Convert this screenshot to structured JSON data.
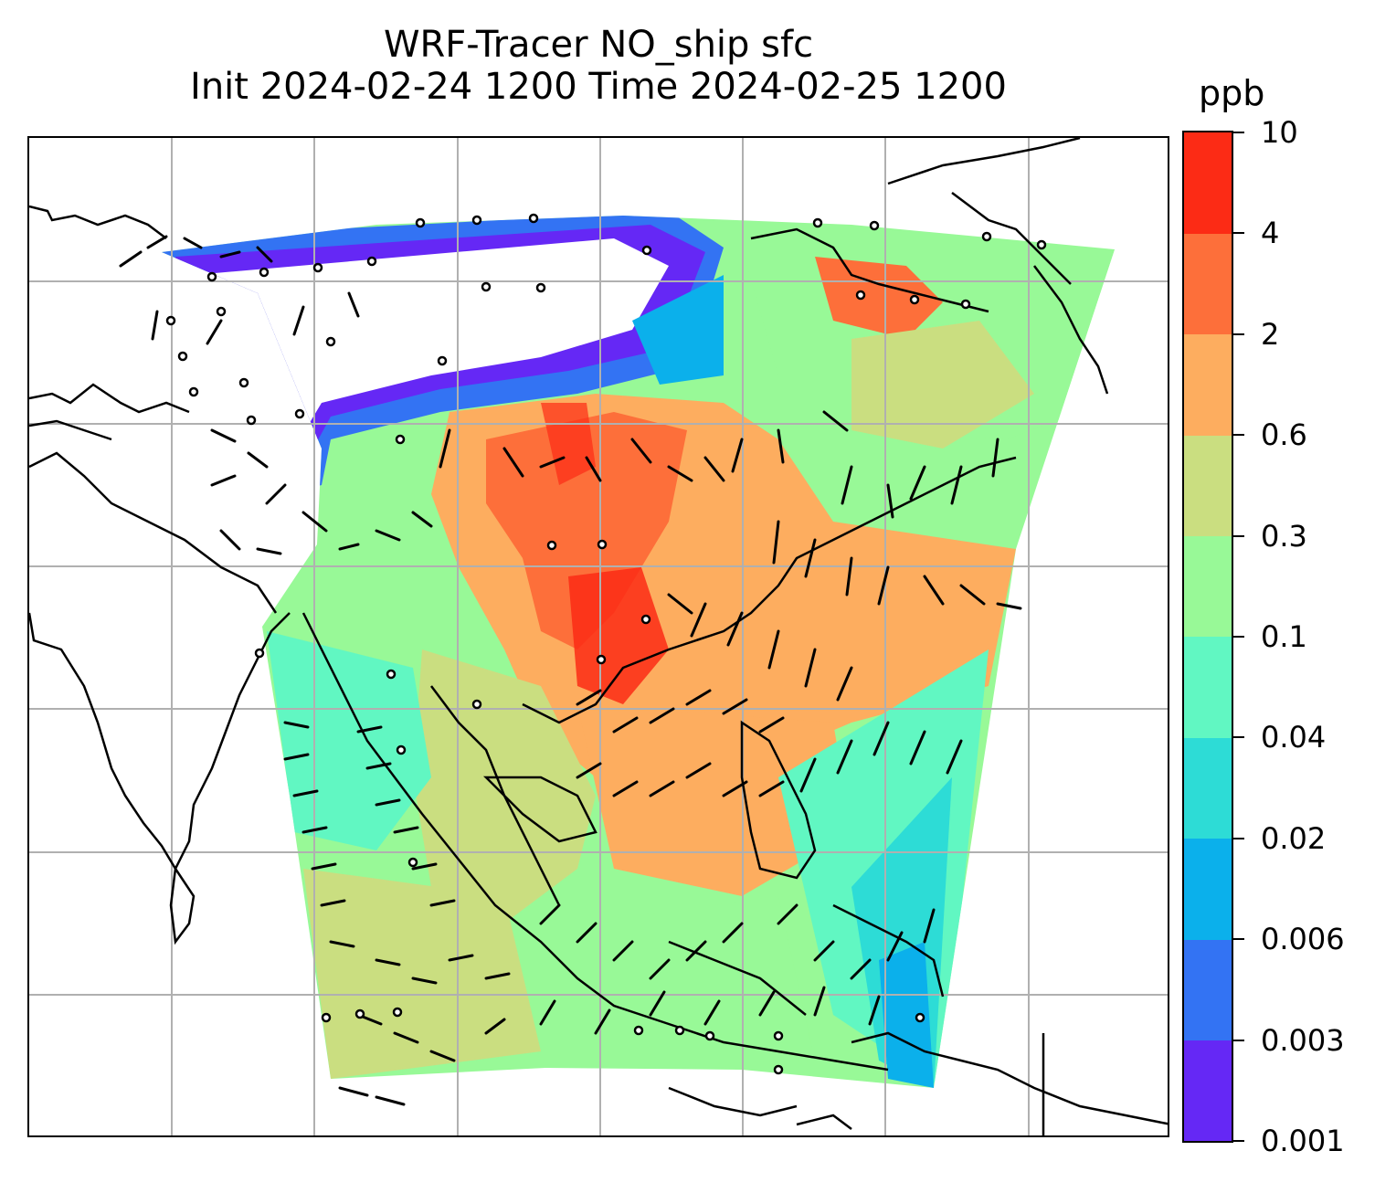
{
  "title": {
    "line1": "WRF-Tracer NO_ship sfc",
    "line2": "Init 2024-02-24 1200 Time 2024-02-25 1200"
  },
  "colorbar": {
    "unit": "ppb",
    "labels": [
      "0.001",
      "0.003",
      "0.006",
      "0.02",
      "0.04",
      "0.1",
      "0.3",
      "0.6",
      "2",
      "4",
      "10"
    ],
    "colors": [
      "#6528f5",
      "#3373f3",
      "#0bb0eb",
      "#2ddcd6",
      "#61f7c2",
      "#98f997",
      "#cade80",
      "#fdad5f",
      "#fd6f3a",
      "#fc2b15"
    ]
  },
  "map": {
    "background": "#ffffff",
    "gridlines": true,
    "coastline_color": "#000000"
  }
}
